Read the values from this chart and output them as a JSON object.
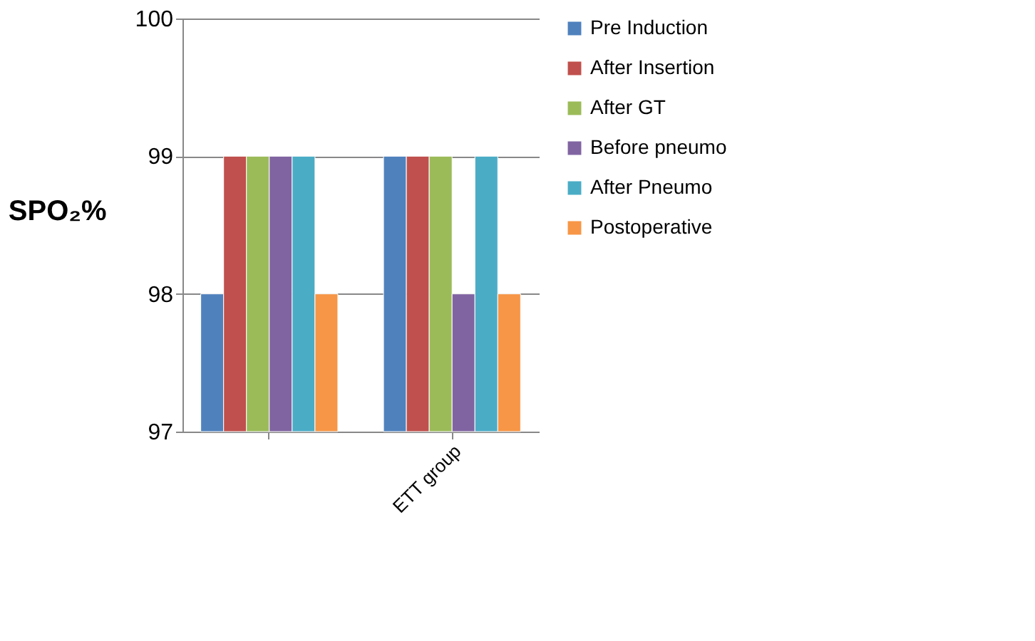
{
  "chart_data": {
    "type": "bar",
    "ylabel": "SPO₂%",
    "categories": [
      null,
      "ETT group"
    ],
    "series": [
      {
        "name": "Pre Induction",
        "color": "#4f81bd",
        "values": [
          98,
          99
        ]
      },
      {
        "name": "After Insertion",
        "color": "#c0504d",
        "values": [
          99,
          99
        ]
      },
      {
        "name": "After GT",
        "color": "#9bbb59",
        "values": [
          99,
          99
        ]
      },
      {
        "name": "Before pneumo",
        "color": "#8064a2",
        "values": [
          99,
          98
        ]
      },
      {
        "name": "After Pneumo",
        "color": "#4bacc6",
        "values": [
          99,
          99
        ]
      },
      {
        "name": "Postoperative",
        "color": "#f79646",
        "values": [
          98,
          98
        ]
      }
    ],
    "ylim": [
      97,
      100
    ],
    "yticks": [
      97,
      98,
      99,
      100
    ],
    "grid": "y",
    "legend": "right"
  }
}
